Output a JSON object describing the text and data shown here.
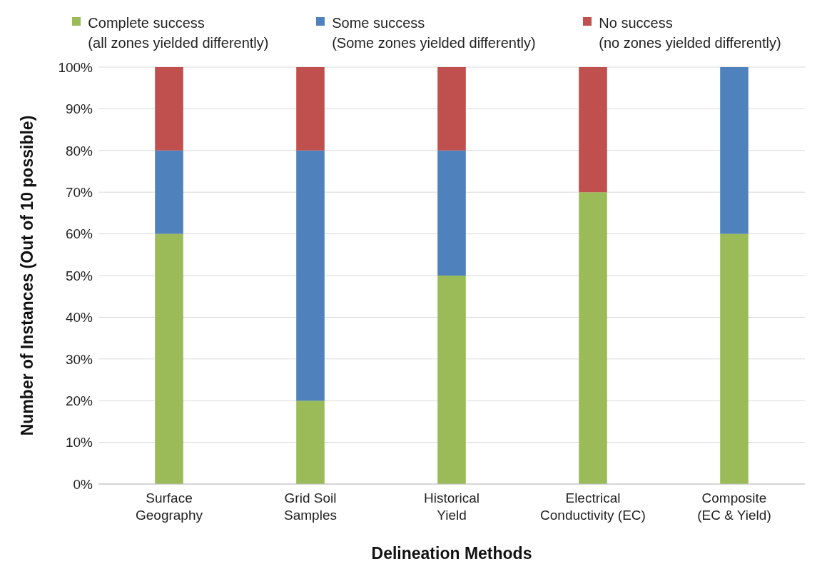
{
  "chart_data": {
    "type": "bar",
    "stacked": true,
    "xlabel": "Delineation Methods",
    "ylabel": "Number of Instances (Out of 10 possible)",
    "categories": [
      "Surface Geography",
      "Grid Soil Samples",
      "Historical Yield",
      "Electrical Conductivity (EC)",
      "Composite (EC & Yield)"
    ],
    "series": [
      {
        "name": "Complete success (all zones yielded differently)",
        "color": "#9bbb59",
        "values": [
          60,
          20,
          50,
          70,
          60
        ]
      },
      {
        "name": "Some success (Some zones yielded differently)",
        "color": "#4f81bd",
        "values": [
          20,
          60,
          30,
          0,
          40
        ]
      },
      {
        "name": "No success (no zones yielded differently)",
        "color": "#c0504d",
        "values": [
          20,
          20,
          20,
          30,
          0
        ]
      }
    ],
    "ylim": [
      0,
      100
    ],
    "yticks": [
      {
        "value": 0,
        "label": "0%"
      },
      {
        "value": 10,
        "label": "10%"
      },
      {
        "value": 20,
        "label": "20%"
      },
      {
        "value": 30,
        "label": "30%"
      },
      {
        "value": 40,
        "label": "40%"
      },
      {
        "value": 50,
        "label": "50%"
      },
      {
        "value": 60,
        "label": "60%"
      },
      {
        "value": 70,
        "label": "70%"
      },
      {
        "value": 80,
        "label": "80%"
      },
      {
        "value": 90,
        "label": "90%"
      },
      {
        "value": 100,
        "label": "100%"
      }
    ],
    "grid": "y",
    "legend": "top"
  }
}
